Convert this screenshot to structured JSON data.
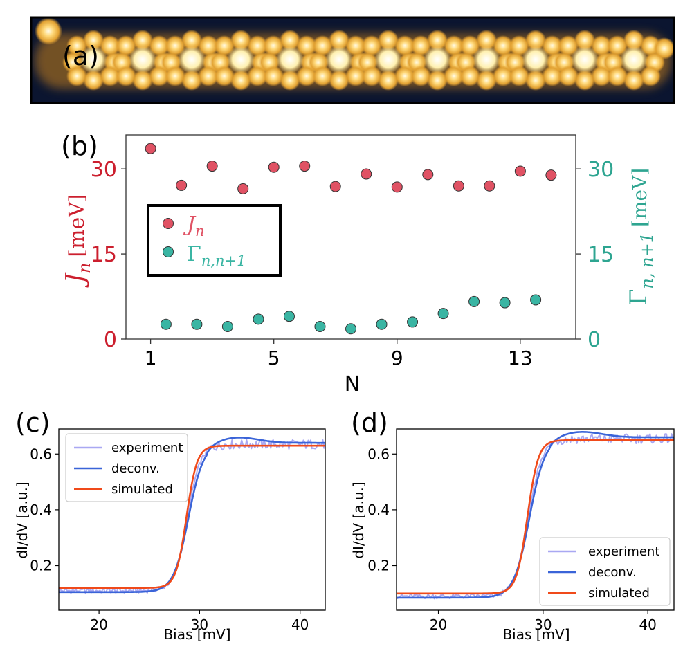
{
  "panel_a": {
    "label": "(a)",
    "description_name": "stm-topography-image",
    "bright_spot_count": 12,
    "colors": {
      "bg": "#0b1530",
      "mid": "#c9821c",
      "bright": "#fff3c4"
    }
  },
  "chart_data": [
    {
      "id": "b",
      "type": "scatter",
      "panel_label": "(b)",
      "xlabel": "N",
      "ylabel_left": {
        "symbol": "J",
        "sub": "n",
        "unit": "[meV]"
      },
      "ylabel_right": {
        "symbol": "Γ",
        "sub": "n, n+1",
        "unit": "[meV]"
      },
      "xlim": [
        0.2,
        14.8
      ],
      "ylim": [
        0,
        36
      ],
      "xticks": [
        1,
        5,
        9,
        13
      ],
      "yticks": [
        0,
        15,
        30
      ],
      "legend_position": "left",
      "series": [
        {
          "name": "J_n",
          "legend_symbol": "J",
          "legend_sub": "n",
          "color": "#e05264",
          "x": [
            1,
            2,
            3,
            4,
            5,
            6,
            7,
            8,
            9,
            10,
            11,
            12,
            13,
            14
          ],
          "values": [
            33.6,
            27.1,
            30.5,
            26.5,
            30.3,
            30.5,
            26.9,
            29.1,
            26.8,
            29.0,
            27.0,
            27.0,
            29.6,
            28.9
          ]
        },
        {
          "name": "Γ_{n,n+1}",
          "legend_symbol": "Γ",
          "legend_sub": "n,n+1",
          "color": "#3ab5a3",
          "x": [
            1.5,
            2.5,
            3.5,
            4.5,
            5.5,
            6.5,
            7.5,
            8.5,
            9.5,
            10.5,
            11.5,
            12.5,
            13.5
          ],
          "values": [
            2.6,
            2.6,
            2.2,
            3.5,
            4.0,
            2.2,
            1.8,
            2.6,
            3.0,
            4.5,
            6.6,
            6.4,
            6.9
          ]
        }
      ],
      "colors": {
        "left_axis": "#cc1f2e",
        "right_axis": "#2ea591"
      }
    },
    {
      "id": "c",
      "type": "line",
      "panel_label": "(c)",
      "xlabel": "Bias [mV]",
      "ylabel": "dI/dV [a.u.]",
      "xlim": [
        16,
        42.5
      ],
      "ylim": [
        0.04,
        0.69
      ],
      "xticks": [
        20,
        30,
        40
      ],
      "yticks": [
        0.2,
        0.4,
        0.6
      ],
      "legend_position": "top-left",
      "step": {
        "low": 0.12,
        "high": 0.63,
        "center": 28.8
      },
      "series": [
        {
          "name": "experiment",
          "color": "#a9a8f2"
        },
        {
          "name": "deconv.",
          "color": "#3a64d8"
        },
        {
          "name": "simulated",
          "color": "#f04a1a"
        }
      ]
    },
    {
      "id": "d",
      "type": "line",
      "panel_label": "(d)",
      "xlabel": "Bias [mV]",
      "ylabel": "dI/dV [a.u.]",
      "xlim": [
        16,
        42.5
      ],
      "ylim": [
        0.04,
        0.69
      ],
      "xticks": [
        20,
        30,
        40
      ],
      "yticks": [
        0.2,
        0.4,
        0.6
      ],
      "legend_position": "bottom-right",
      "step": {
        "low": 0.1,
        "high": 0.65,
        "center": 28.6
      },
      "series": [
        {
          "name": "experiment",
          "color": "#a9a8f2"
        },
        {
          "name": "deconv.",
          "color": "#3a64d8"
        },
        {
          "name": "simulated",
          "color": "#f04a1a"
        }
      ]
    }
  ]
}
